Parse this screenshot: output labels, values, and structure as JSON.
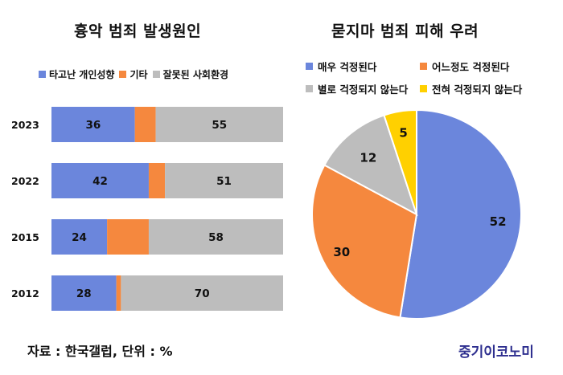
{
  "chart_data": [
    {
      "type": "bar",
      "orientation": "horizontal",
      "stacked": true,
      "title": "흉악 범죄 발생원인",
      "categories": [
        "2023",
        "2022",
        "2015",
        "2012"
      ],
      "series": [
        {
          "name": "타고난 개인성향",
          "color": "#6B86DC",
          "values": [
            36,
            42,
            24,
            28
          ]
        },
        {
          "name": "기타",
          "color": "#F5883E",
          "values": [
            9,
            7,
            18,
            2
          ]
        },
        {
          "name": "잘못된 사회환경",
          "color": "#BDBDBD",
          "values": [
            55,
            51,
            58,
            70
          ]
        }
      ],
      "data_labels": [
        [
          "36",
          "",
          "55"
        ],
        [
          "42",
          "",
          "51"
        ],
        [
          "24",
          "",
          "58"
        ],
        [
          "28",
          "",
          "70"
        ]
      ],
      "xlim": [
        0,
        100
      ],
      "legend_position": "top",
      "grid": false
    },
    {
      "type": "pie",
      "title": "묻지마 범죄 피해 우려",
      "labels": [
        "매우 걱정된다",
        "어느정도 걱정된다",
        "별로 걱정되지 않는다",
        "전혀 걱정되지 않는다"
      ],
      "values": [
        52,
        30,
        12,
        5
      ],
      "value_labels": [
        "52",
        "30",
        "12",
        "5"
      ],
      "colors": [
        "#6B86DC",
        "#F5883E",
        "#BDBDBD",
        "#FFD000"
      ],
      "start": "12 o'clock",
      "direction": "clockwise",
      "legend_position": "top"
    }
  ],
  "footer": {
    "source": "자료 : 한국갤럽, 단위 : %",
    "brand": "중기이코노미"
  }
}
